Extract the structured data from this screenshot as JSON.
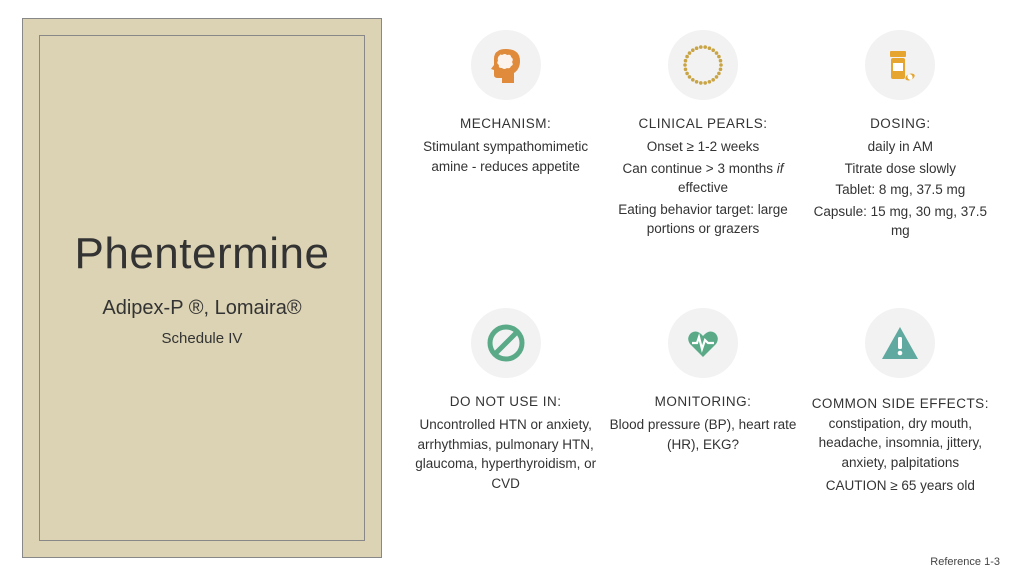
{
  "leftPanel": {
    "drugName": "Phentermine",
    "brandNames": "Adipex-P ®, Lomaira®",
    "schedule": "Schedule IV",
    "background": "#dcd3b4",
    "borderColor": "#888888"
  },
  "iconColors": {
    "orange": "#e08a3c",
    "gold": "#c9a444",
    "yellowOrange": "#e6a52e",
    "green": "#5aa987",
    "teal": "#5fa9a0",
    "circleBg": "#f2f2f2"
  },
  "blocks": [
    {
      "icon": "brain-head",
      "title": "MECHANISM:",
      "lines": [
        "Stimulant sympathomimetic amine - reduces appetite"
      ]
    },
    {
      "icon": "dotted-circle",
      "title": "CLINICAL PEARLS:",
      "lines": [
        "Onset ≥ 1-2 weeks",
        "Can continue > 3 months <i>if</i> effective",
        "Eating behavior target: large portions or grazers"
      ]
    },
    {
      "icon": "pill-bottle",
      "title": "DOSING:",
      "lines": [
        "daily in AM",
        "Titrate dose slowly",
        "Tablet: 8 mg, 37.5 mg",
        "Capsule: 15 mg, 30 mg, 37.5 mg"
      ]
    },
    {
      "icon": "no-symbol",
      "title": "DO NOT USE IN:",
      "lines": [
        "Uncontrolled HTN or anxiety, arrhythmias, pulmonary HTN, glaucoma, hyperthyroidism, or CVD"
      ]
    },
    {
      "icon": "heart-monitor",
      "title": "MONITORING:",
      "lines": [
        "Blood pressure (BP), heart rate (HR), EKG?"
      ]
    },
    {
      "icon": "warning",
      "title": "COMMON SIDE EFFECTS:",
      "titleInline": "constipation, dry mouth, headache, insomnia, jittery, anxiety, palpitations",
      "lines": [
        "CAUTION ≥ 65 years old"
      ]
    }
  ],
  "reference": "Reference 1-3"
}
